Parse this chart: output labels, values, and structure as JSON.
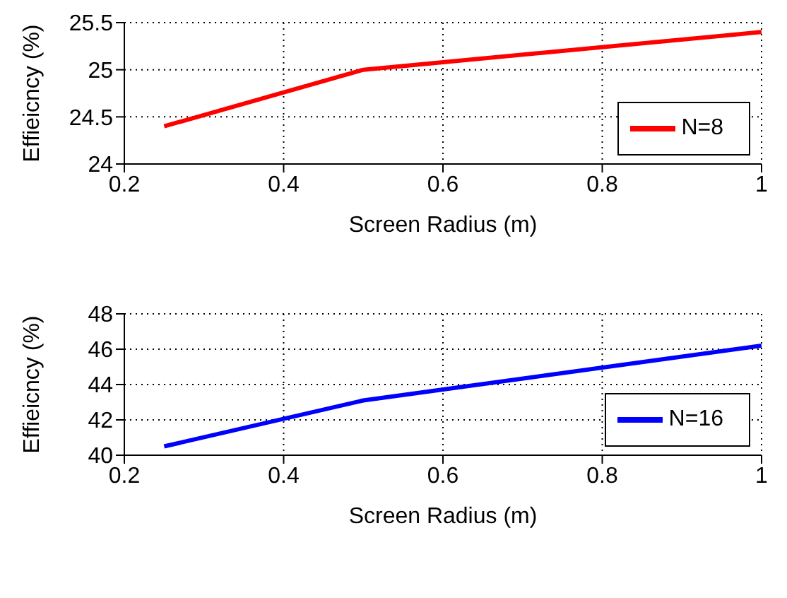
{
  "chart_data": [
    {
      "type": "line",
      "xlabel": "Screen Radius (m)",
      "ylabel": "Effieicncy (%)",
      "x": [
        0.25,
        0.5,
        1.0
      ],
      "series": [
        {
          "name": "N=8",
          "color": "#ff0000",
          "values": [
            24.4,
            25.0,
            25.4
          ]
        }
      ],
      "xlim": [
        0.2,
        1
      ],
      "xticks": [
        0.2,
        0.4,
        0.6,
        0.8,
        1
      ],
      "ylim": [
        24,
        25.5
      ],
      "yticks": [
        24,
        24.5,
        25,
        25.5
      ],
      "grid": true,
      "legend": "bottom right",
      "marker": "none",
      "line_style": "solid"
    },
    {
      "type": "line",
      "xlabel": "Screen Radius (m)",
      "ylabel": "Effieicncy (%)",
      "x": [
        0.25,
        0.5,
        1.0
      ],
      "series": [
        {
          "name": "N=16",
          "color": "#0000ff",
          "values": [
            40.5,
            43.1,
            46.2
          ]
        }
      ],
      "xlim": [
        0.2,
        1
      ],
      "xticks": [
        0.2,
        0.4,
        0.6,
        0.8,
        1
      ],
      "ylim": [
        40,
        48
      ],
      "yticks": [
        40,
        42,
        44,
        46,
        48
      ],
      "grid": true,
      "legend": "bottom right",
      "marker": "none",
      "line_style": "solid"
    }
  ]
}
